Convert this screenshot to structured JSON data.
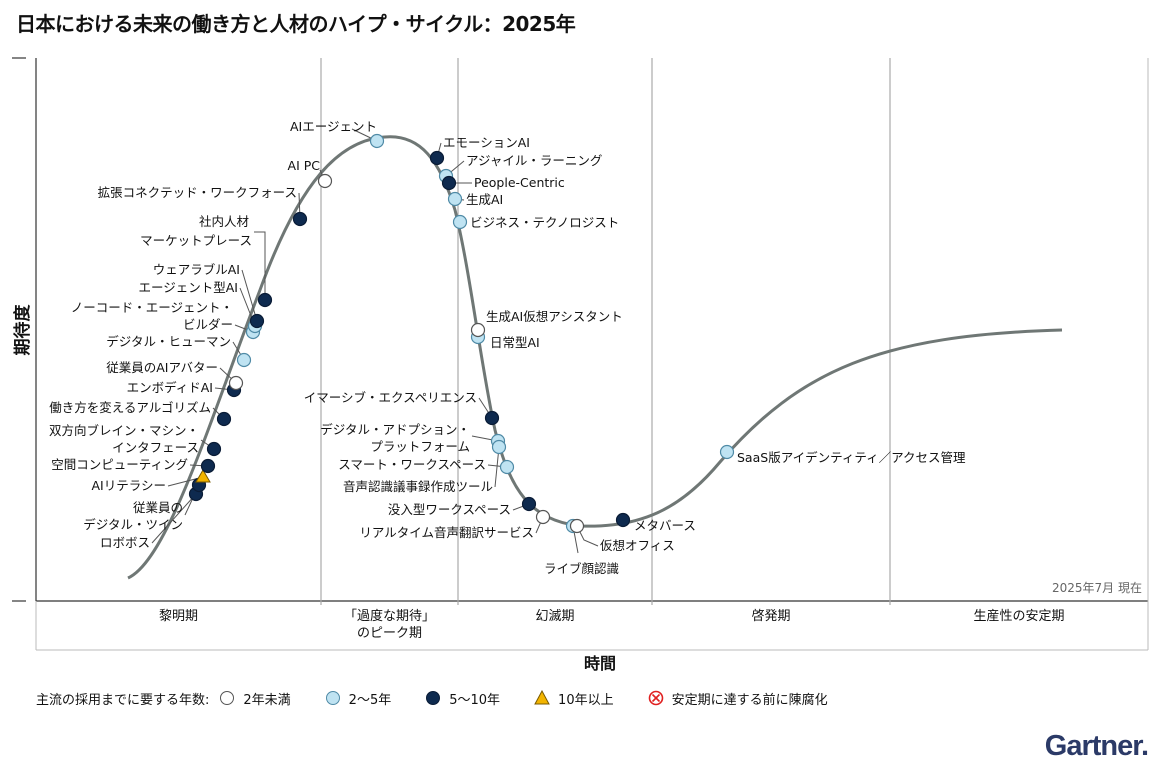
{
  "title": "日本における未来の働き方と人材のハイプ・サイクル：2025年",
  "chart_data": {
    "type": "hype-cycle",
    "ylabel": "期待度",
    "xlabel": "時間",
    "as_of": "2025年7月 現在",
    "phases": [
      "黎明期",
      "「過度な期待」\nのピーク期",
      "幻滅期",
      "啓発期",
      "生産性の安定期"
    ],
    "legend": {
      "title": "主流の採用までに要する年数:",
      "items": [
        {
          "key": "lt2",
          "label": "2年未満",
          "color": "#ffffff"
        },
        {
          "key": "y2to5",
          "label": "2～5年",
          "color": "#bfe3f2"
        },
        {
          "key": "y5to10",
          "label": "5～10年",
          "color": "#0e2a4f"
        },
        {
          "key": "gt10",
          "label": "10年以上",
          "color": "#f2b400"
        },
        {
          "key": "obsolete",
          "label": "安定期に達する前に陳腐化",
          "color": "#e02020"
        }
      ]
    },
    "technologies": [
      {
        "label": "ロボボス",
        "cat": "y5to10"
      },
      {
        "label": "従業員の\nデジタル・ツイン",
        "cat": "y5to10"
      },
      {
        "label": "AIリテラシー",
        "cat": "gt10"
      },
      {
        "label": "空間コンピューティング",
        "cat": "y5to10"
      },
      {
        "label": "双方向ブレイン・マシン・\nインタフェース",
        "cat": "y5to10"
      },
      {
        "label": "働き方を変えるアルゴリズム",
        "cat": "y5to10"
      },
      {
        "label": "エンボディドAI",
        "cat": "y5to10"
      },
      {
        "label": "従業員のAIアバター",
        "cat": "lt2"
      },
      {
        "label": "デジタル・ヒューマン",
        "cat": "y2to5"
      },
      {
        "label": "ノーコード・エージェント・\nビルダー",
        "cat": "y2to5"
      },
      {
        "label": "エージェント型AI",
        "cat": "y2to5"
      },
      {
        "label": "ウェアラブルAI",
        "cat": "y5to10"
      },
      {
        "label": "マーケットプレース",
        "cat": "y5to10"
      },
      {
        "label": "社内人材",
        "cat": "y5to10"
      },
      {
        "label": "拡張コネクテッド・ワークフォース",
        "cat": "y5to10"
      },
      {
        "label": "AI PC",
        "cat": "lt2"
      },
      {
        "label": "AIエージェント",
        "cat": "y2to5"
      },
      {
        "label": "エモーションAI",
        "cat": "y5to10"
      },
      {
        "label": "アジャイル・ラーニング",
        "cat": "y2to5"
      },
      {
        "label": "People-Centric",
        "cat": "y5to10"
      },
      {
        "label": "生成AI",
        "cat": "y2to5"
      },
      {
        "label": "ビジネス・テクノロジスト",
        "cat": "y2to5"
      },
      {
        "label": "生成AI仮想アシスタント",
        "cat": "lt2"
      },
      {
        "label": "日常型AI",
        "cat": "y2to5"
      },
      {
        "label": "イマーシブ・エクスペリエンス",
        "cat": "y5to10"
      },
      {
        "label": "デジタル・アドプション・\nプラットフォーム",
        "cat": "y2to5"
      },
      {
        "label": "スマート・ワークスペース",
        "cat": "y2to5"
      },
      {
        "label": "音声認識議事録作成ツール",
        "cat": "y2to5"
      },
      {
        "label": "没入型ワークスペース",
        "cat": "y5to10"
      },
      {
        "label": "リアルタイム音声翻訳サービス",
        "cat": "lt2"
      },
      {
        "label": "ライブ顔認識",
        "cat": "y2to5"
      },
      {
        "label": "仮想オフィス",
        "cat": "lt2"
      },
      {
        "label": "メタバース",
        "cat": "y5to10"
      },
      {
        "label": "SaaS版アイデンティティ／アクセス管理",
        "cat": "y2to5"
      }
    ]
  },
  "logo": "Gartner."
}
